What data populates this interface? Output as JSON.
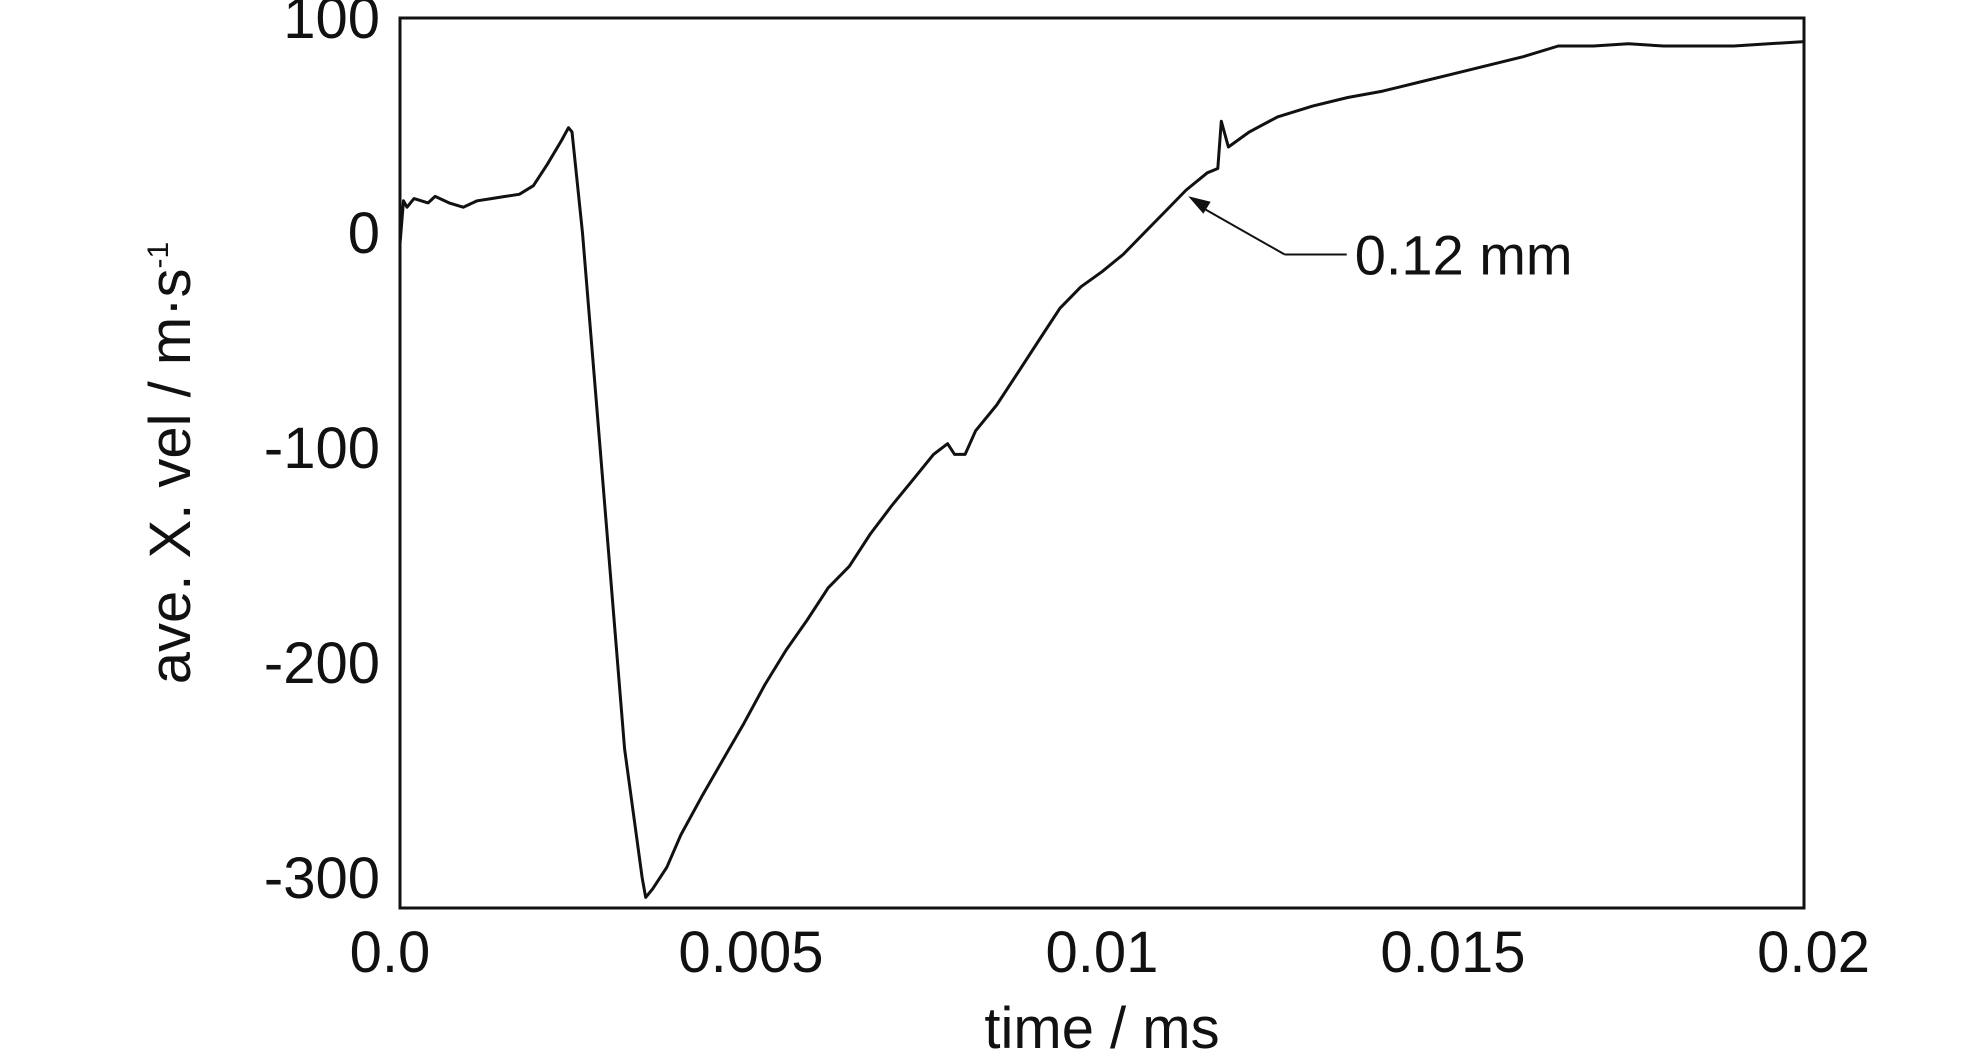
{
  "chart_data": {
    "type": "line",
    "title": "",
    "xlabel": "time / ms",
    "ylabel_main": "ave. X. vel / m·s",
    "ylabel_sup": "-1",
    "xlim": [
      0.0,
      0.02
    ],
    "ylim": [
      -310,
      100
    ],
    "grid": false,
    "legend": "none",
    "x_ticks": [
      {
        "value": 0.0,
        "label": "0.0"
      },
      {
        "value": 0.005,
        "label": "0.005"
      },
      {
        "value": 0.01,
        "label": "0.01"
      },
      {
        "value": 0.015,
        "label": "0.015"
      },
      {
        "value": 0.02,
        "label": "0.02"
      }
    ],
    "y_ticks": [
      {
        "value": 100,
        "label": "100"
      },
      {
        "value": 0,
        "label": "0"
      },
      {
        "value": -100,
        "label": "-100"
      },
      {
        "value": -200,
        "label": "-200"
      },
      {
        "value": -300,
        "label": "-300"
      }
    ],
    "series": [
      {
        "color": "#111111",
        "points": [
          [
            0.0,
            -5
          ],
          [
            5e-05,
            15
          ],
          [
            0.0001,
            12
          ],
          [
            0.0002,
            16
          ],
          [
            0.0004,
            14
          ],
          [
            0.0005,
            17
          ],
          [
            0.0007,
            14
          ],
          [
            0.0009,
            12
          ],
          [
            0.0011,
            15
          ],
          [
            0.0013,
            16
          ],
          [
            0.0015,
            17
          ],
          [
            0.0017,
            18
          ],
          [
            0.0019,
            22
          ],
          [
            0.0021,
            32
          ],
          [
            0.0023,
            43
          ],
          [
            0.0024,
            49
          ],
          [
            0.00245,
            47
          ],
          [
            0.0026,
            0
          ],
          [
            0.0028,
            -80
          ],
          [
            0.003,
            -160
          ],
          [
            0.0032,
            -240
          ],
          [
            0.00345,
            -300
          ],
          [
            0.0035,
            -309
          ],
          [
            0.0036,
            -305
          ],
          [
            0.0038,
            -295
          ],
          [
            0.004,
            -280
          ],
          [
            0.0043,
            -262
          ],
          [
            0.0046,
            -245
          ],
          [
            0.0049,
            -228
          ],
          [
            0.0052,
            -210
          ],
          [
            0.0055,
            -194
          ],
          [
            0.0058,
            -180
          ],
          [
            0.0061,
            -165
          ],
          [
            0.0064,
            -155
          ],
          [
            0.0067,
            -140
          ],
          [
            0.007,
            -127
          ],
          [
            0.0073,
            -115
          ],
          [
            0.0076,
            -103
          ],
          [
            0.0078,
            -98
          ],
          [
            0.0079,
            -103
          ],
          [
            0.00805,
            -103
          ],
          [
            0.0082,
            -92
          ],
          [
            0.0085,
            -80
          ],
          [
            0.0088,
            -65
          ],
          [
            0.0091,
            -50
          ],
          [
            0.0094,
            -35
          ],
          [
            0.0097,
            -25
          ],
          [
            0.01,
            -18
          ],
          [
            0.0103,
            -10
          ],
          [
            0.0106,
            0
          ],
          [
            0.0109,
            10
          ],
          [
            0.0112,
            20
          ],
          [
            0.0115,
            28
          ],
          [
            0.01165,
            30
          ],
          [
            0.0117,
            52
          ],
          [
            0.0118,
            40
          ],
          [
            0.0121,
            47
          ],
          [
            0.0125,
            54
          ],
          [
            0.013,
            59
          ],
          [
            0.0135,
            63
          ],
          [
            0.014,
            66
          ],
          [
            0.0145,
            70
          ],
          [
            0.015,
            74
          ],
          [
            0.0155,
            78
          ],
          [
            0.016,
            82
          ],
          [
            0.0165,
            87
          ],
          [
            0.017,
            87
          ],
          [
            0.0175,
            88
          ],
          [
            0.018,
            87
          ],
          [
            0.0185,
            87
          ],
          [
            0.019,
            87
          ],
          [
            0.0195,
            88
          ],
          [
            0.02,
            89
          ]
        ]
      }
    ],
    "annotations": [
      {
        "text": "0.12 mm",
        "x": 0.0112,
        "y": 18,
        "text_x": 0.0136,
        "text_y": -10
      }
    ]
  }
}
